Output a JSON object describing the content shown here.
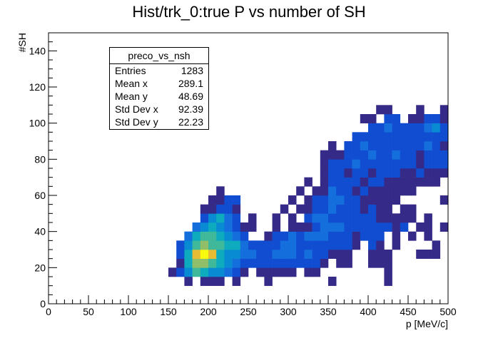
{
  "chart_data": {
    "type": "heatmap",
    "title": "Hist/trk_0:true P vs number of SH",
    "xlabel": "p [MeV/c]",
    "ylabel": "#SH",
    "xlim": [
      0,
      500
    ],
    "ylim": [
      0,
      150
    ],
    "x_ticks": [
      "0",
      "50",
      "100",
      "150",
      "200",
      "250",
      "300",
      "350",
      "400",
      "450",
      "500"
    ],
    "y_ticks": [
      "0",
      "20",
      "40",
      "60",
      "80",
      "100",
      "120",
      "140"
    ],
    "bin_width_x": 10,
    "bin_width_y": 5,
    "colors": {
      "low": "#2a3fb0",
      "mid": "#1aa6c8",
      "high": "#f7e51a"
    },
    "bins": [
      [
        170,
        10,
        1
      ],
      [
        190,
        10,
        1
      ],
      [
        200,
        10,
        1
      ],
      [
        210,
        10,
        1
      ],
      [
        230,
        10,
        1
      ],
      [
        270,
        10,
        1
      ],
      [
        350,
        10,
        1
      ],
      [
        420,
        10,
        1
      ],
      [
        150,
        15,
        1
      ],
      [
        160,
        15,
        2
      ],
      [
        170,
        15,
        4
      ],
      [
        180,
        15,
        6
      ],
      [
        190,
        15,
        5
      ],
      [
        200,
        15,
        4
      ],
      [
        210,
        15,
        4
      ],
      [
        220,
        15,
        3
      ],
      [
        230,
        15,
        2
      ],
      [
        240,
        15,
        1
      ],
      [
        260,
        15,
        1
      ],
      [
        270,
        15,
        1
      ],
      [
        280,
        15,
        1
      ],
      [
        290,
        15,
        1
      ],
      [
        300,
        15,
        1
      ],
      [
        320,
        15,
        1
      ],
      [
        330,
        15,
        1
      ],
      [
        420,
        15,
        1
      ],
      [
        160,
        20,
        1
      ],
      [
        170,
        20,
        5
      ],
      [
        180,
        20,
        7
      ],
      [
        190,
        20,
        7
      ],
      [
        200,
        20,
        6
      ],
      [
        210,
        20,
        5
      ],
      [
        220,
        20,
        4
      ],
      [
        230,
        20,
        3
      ],
      [
        240,
        20,
        2
      ],
      [
        250,
        20,
        2
      ],
      [
        260,
        20,
        2
      ],
      [
        270,
        20,
        2
      ],
      [
        280,
        20,
        2
      ],
      [
        290,
        20,
        2
      ],
      [
        300,
        20,
        2
      ],
      [
        310,
        20,
        2
      ],
      [
        320,
        20,
        2
      ],
      [
        330,
        20,
        2
      ],
      [
        340,
        20,
        1
      ],
      [
        360,
        20,
        1
      ],
      [
        370,
        20,
        1
      ],
      [
        400,
        20,
        1
      ],
      [
        410,
        20,
        1
      ],
      [
        420,
        20,
        1
      ],
      [
        160,
        25,
        2
      ],
      [
        170,
        25,
        5
      ],
      [
        180,
        25,
        8
      ],
      [
        190,
        25,
        9
      ],
      [
        200,
        25,
        8
      ],
      [
        210,
        25,
        5
      ],
      [
        220,
        25,
        4
      ],
      [
        230,
        25,
        4
      ],
      [
        240,
        25,
        3
      ],
      [
        250,
        25,
        3
      ],
      [
        260,
        25,
        2
      ],
      [
        270,
        25,
        2
      ],
      [
        280,
        25,
        3
      ],
      [
        290,
        25,
        3
      ],
      [
        300,
        25,
        3
      ],
      [
        310,
        25,
        2
      ],
      [
        320,
        25,
        3
      ],
      [
        330,
        25,
        2
      ],
      [
        340,
        25,
        2
      ],
      [
        350,
        25,
        1
      ],
      [
        360,
        25,
        1
      ],
      [
        370,
        25,
        1
      ],
      [
        400,
        25,
        1
      ],
      [
        410,
        25,
        1
      ],
      [
        420,
        25,
        1
      ],
      [
        460,
        25,
        1
      ],
      [
        470,
        25,
        1
      ],
      [
        480,
        25,
        1
      ],
      [
        160,
        30,
        2
      ],
      [
        170,
        30,
        4
      ],
      [
        180,
        30,
        6
      ],
      [
        190,
        30,
        7
      ],
      [
        200,
        30,
        6
      ],
      [
        210,
        30,
        6
      ],
      [
        220,
        30,
        5
      ],
      [
        230,
        30,
        5
      ],
      [
        240,
        30,
        3
      ],
      [
        250,
        30,
        2
      ],
      [
        260,
        30,
        2
      ],
      [
        270,
        30,
        2
      ],
      [
        280,
        30,
        2
      ],
      [
        290,
        30,
        3
      ],
      [
        300,
        30,
        3
      ],
      [
        310,
        30,
        2
      ],
      [
        320,
        30,
        2
      ],
      [
        330,
        30,
        2
      ],
      [
        340,
        30,
        2
      ],
      [
        350,
        30,
        2
      ],
      [
        360,
        30,
        2
      ],
      [
        370,
        30,
        2
      ],
      [
        380,
        30,
        1
      ],
      [
        400,
        30,
        2
      ],
      [
        410,
        30,
        1
      ],
      [
        430,
        30,
        1
      ],
      [
        480,
        30,
        1
      ],
      [
        170,
        35,
        3
      ],
      [
        180,
        35,
        5
      ],
      [
        190,
        35,
        6
      ],
      [
        200,
        35,
        6
      ],
      [
        210,
        35,
        5
      ],
      [
        220,
        35,
        4
      ],
      [
        230,
        35,
        3
      ],
      [
        240,
        35,
        2
      ],
      [
        270,
        35,
        1
      ],
      [
        280,
        35,
        2
      ],
      [
        290,
        35,
        2
      ],
      [
        300,
        35,
        3
      ],
      [
        310,
        35,
        2
      ],
      [
        320,
        35,
        3
      ],
      [
        330,
        35,
        3
      ],
      [
        340,
        35,
        3
      ],
      [
        350,
        35,
        2
      ],
      [
        360,
        35,
        2
      ],
      [
        370,
        35,
        2
      ],
      [
        380,
        35,
        1
      ],
      [
        390,
        35,
        2
      ],
      [
        400,
        35,
        2
      ],
      [
        410,
        35,
        2
      ],
      [
        430,
        35,
        1
      ],
      [
        450,
        35,
        1
      ],
      [
        470,
        35,
        1
      ],
      [
        180,
        40,
        3
      ],
      [
        190,
        40,
        4
      ],
      [
        200,
        40,
        5
      ],
      [
        210,
        40,
        4
      ],
      [
        220,
        40,
        3
      ],
      [
        230,
        40,
        2
      ],
      [
        240,
        40,
        1
      ],
      [
        250,
        40,
        1
      ],
      [
        280,
        40,
        1
      ],
      [
        300,
        40,
        1
      ],
      [
        310,
        40,
        1
      ],
      [
        320,
        40,
        1
      ],
      [
        330,
        40,
        2
      ],
      [
        340,
        40,
        3
      ],
      [
        350,
        40,
        3
      ],
      [
        360,
        40,
        3
      ],
      [
        370,
        40,
        2
      ],
      [
        380,
        40,
        2
      ],
      [
        390,
        40,
        2
      ],
      [
        400,
        40,
        2
      ],
      [
        410,
        40,
        2
      ],
      [
        420,
        40,
        2
      ],
      [
        430,
        40,
        1
      ],
      [
        440,
        40,
        2
      ],
      [
        460,
        40,
        1
      ],
      [
        470,
        40,
        1
      ],
      [
        490,
        40,
        1
      ],
      [
        190,
        45,
        2
      ],
      [
        200,
        45,
        4
      ],
      [
        210,
        45,
        5
      ],
      [
        220,
        45,
        3
      ],
      [
        230,
        45,
        2
      ],
      [
        250,
        45,
        1
      ],
      [
        280,
        45,
        1
      ],
      [
        300,
        45,
        1
      ],
      [
        320,
        45,
        2
      ],
      [
        330,
        45,
        3
      ],
      [
        340,
        45,
        3
      ],
      [
        350,
        45,
        2
      ],
      [
        360,
        45,
        2
      ],
      [
        370,
        45,
        2
      ],
      [
        380,
        45,
        2
      ],
      [
        390,
        45,
        2
      ],
      [
        400,
        45,
        2
      ],
      [
        410,
        45,
        1
      ],
      [
        420,
        45,
        1
      ],
      [
        430,
        45,
        1
      ],
      [
        440,
        45,
        1
      ],
      [
        450,
        45,
        1
      ],
      [
        470,
        45,
        1
      ],
      [
        190,
        50,
        1
      ],
      [
        200,
        50,
        1
      ],
      [
        210,
        50,
        2
      ],
      [
        220,
        50,
        2
      ],
      [
        230,
        50,
        1
      ],
      [
        290,
        50,
        1
      ],
      [
        310,
        50,
        1
      ],
      [
        320,
        50,
        1
      ],
      [
        330,
        50,
        2
      ],
      [
        340,
        50,
        2
      ],
      [
        350,
        50,
        3
      ],
      [
        360,
        50,
        2
      ],
      [
        370,
        50,
        2
      ],
      [
        380,
        50,
        2
      ],
      [
        390,
        50,
        1
      ],
      [
        400,
        50,
        2
      ],
      [
        410,
        50,
        1
      ],
      [
        420,
        50,
        1
      ],
      [
        440,
        50,
        1
      ],
      [
        450,
        50,
        1
      ],
      [
        200,
        55,
        1
      ],
      [
        210,
        55,
        1
      ],
      [
        220,
        55,
        2
      ],
      [
        230,
        55,
        2
      ],
      [
        300,
        55,
        1
      ],
      [
        320,
        55,
        1
      ],
      [
        330,
        55,
        2
      ],
      [
        340,
        55,
        2
      ],
      [
        350,
        55,
        3
      ],
      [
        360,
        55,
        3
      ],
      [
        370,
        55,
        2
      ],
      [
        380,
        55,
        2
      ],
      [
        390,
        55,
        1
      ],
      [
        400,
        55,
        1
      ],
      [
        410,
        55,
        1
      ],
      [
        420,
        55,
        1
      ],
      [
        430,
        55,
        1
      ],
      [
        490,
        55,
        1
      ],
      [
        210,
        60,
        1
      ],
      [
        310,
        60,
        1
      ],
      [
        330,
        60,
        1
      ],
      [
        340,
        60,
        1
      ],
      [
        350,
        60,
        3
      ],
      [
        360,
        60,
        2
      ],
      [
        370,
        60,
        2
      ],
      [
        380,
        60,
        1
      ],
      [
        390,
        60,
        2
      ],
      [
        400,
        60,
        1
      ],
      [
        410,
        60,
        1
      ],
      [
        420,
        60,
        1
      ],
      [
        430,
        60,
        1
      ],
      [
        440,
        60,
        1
      ],
      [
        450,
        60,
        1
      ],
      [
        320,
        65,
        1
      ],
      [
        340,
        65,
        1
      ],
      [
        350,
        65,
        2
      ],
      [
        360,
        65,
        2
      ],
      [
        370,
        65,
        2
      ],
      [
        380,
        65,
        2
      ],
      [
        390,
        65,
        1
      ],
      [
        400,
        65,
        2
      ],
      [
        410,
        65,
        2
      ],
      [
        420,
        65,
        1
      ],
      [
        430,
        65,
        1
      ],
      [
        440,
        65,
        1
      ],
      [
        450,
        65,
        1
      ],
      [
        460,
        65,
        1
      ],
      [
        470,
        65,
        1
      ],
      [
        480,
        65,
        1
      ],
      [
        340,
        70,
        1
      ],
      [
        350,
        70,
        2
      ],
      [
        360,
        70,
        2
      ],
      [
        370,
        70,
        1
      ],
      [
        380,
        70,
        2
      ],
      [
        390,
        70,
        2
      ],
      [
        400,
        70,
        1
      ],
      [
        410,
        70,
        2
      ],
      [
        420,
        70,
        2
      ],
      [
        430,
        70,
        2
      ],
      [
        440,
        70,
        1
      ],
      [
        450,
        70,
        1
      ],
      [
        460,
        70,
        2
      ],
      [
        470,
        70,
        1
      ],
      [
        480,
        70,
        1
      ],
      [
        490,
        70,
        1
      ],
      [
        340,
        75,
        1
      ],
      [
        350,
        75,
        2
      ],
      [
        360,
        75,
        2
      ],
      [
        370,
        75,
        2
      ],
      [
        380,
        75,
        3
      ],
      [
        390,
        75,
        2
      ],
      [
        400,
        75,
        2
      ],
      [
        410,
        75,
        2
      ],
      [
        420,
        75,
        2
      ],
      [
        430,
        75,
        2
      ],
      [
        440,
        75,
        2
      ],
      [
        450,
        75,
        2
      ],
      [
        460,
        75,
        1
      ],
      [
        470,
        75,
        2
      ],
      [
        480,
        75,
        2
      ],
      [
        490,
        75,
        2
      ],
      [
        340,
        80,
        1
      ],
      [
        350,
        80,
        1
      ],
      [
        360,
        80,
        1
      ],
      [
        370,
        80,
        2
      ],
      [
        380,
        80,
        2
      ],
      [
        390,
        80,
        2
      ],
      [
        400,
        80,
        3
      ],
      [
        410,
        80,
        2
      ],
      [
        420,
        80,
        2
      ],
      [
        430,
        80,
        3
      ],
      [
        440,
        80,
        2
      ],
      [
        450,
        80,
        2
      ],
      [
        460,
        80,
        1
      ],
      [
        470,
        80,
        2
      ],
      [
        480,
        80,
        2
      ],
      [
        490,
        80,
        2
      ],
      [
        350,
        85,
        1
      ],
      [
        370,
        85,
        2
      ],
      [
        380,
        85,
        2
      ],
      [
        390,
        85,
        3
      ],
      [
        400,
        85,
        2
      ],
      [
        410,
        85,
        2
      ],
      [
        420,
        85,
        2
      ],
      [
        430,
        85,
        2
      ],
      [
        440,
        85,
        2
      ],
      [
        450,
        85,
        2
      ],
      [
        460,
        85,
        2
      ],
      [
        470,
        85,
        3
      ],
      [
        480,
        85,
        2
      ],
      [
        490,
        85,
        1
      ],
      [
        380,
        90,
        2
      ],
      [
        390,
        90,
        2
      ],
      [
        400,
        90,
        2
      ],
      [
        410,
        90,
        2
      ],
      [
        420,
        90,
        2
      ],
      [
        430,
        90,
        2
      ],
      [
        440,
        90,
        2
      ],
      [
        450,
        90,
        2
      ],
      [
        460,
        90,
        2
      ],
      [
        470,
        90,
        2
      ],
      [
        480,
        90,
        2
      ],
      [
        490,
        90,
        2
      ],
      [
        400,
        95,
        2
      ],
      [
        410,
        95,
        2
      ],
      [
        420,
        95,
        3
      ],
      [
        430,
        95,
        2
      ],
      [
        440,
        95,
        2
      ],
      [
        450,
        95,
        2
      ],
      [
        460,
        95,
        2
      ],
      [
        470,
        95,
        3
      ],
      [
        480,
        95,
        4
      ],
      [
        490,
        95,
        2
      ],
      [
        390,
        100,
        1
      ],
      [
        400,
        100,
        1
      ],
      [
        420,
        100,
        2
      ],
      [
        430,
        100,
        2
      ],
      [
        450,
        100,
        1
      ],
      [
        460,
        100,
        1
      ],
      [
        470,
        100,
        2
      ],
      [
        480,
        100,
        2
      ],
      [
        490,
        100,
        1
      ],
      [
        410,
        105,
        1
      ],
      [
        420,
        105,
        1
      ],
      [
        460,
        105,
        1
      ],
      [
        490,
        105,
        1
      ]
    ],
    "stats": {
      "name": "preco_vs_nsh",
      "rows": [
        {
          "label": "Entries",
          "value": "1283"
        },
        {
          "label": "Mean x",
          "value": "289.1"
        },
        {
          "label": "Mean y",
          "value": "48.69"
        },
        {
          "label": "Std Dev x",
          "value": "92.39"
        },
        {
          "label": "Std Dev y",
          "value": "22.23"
        }
      ]
    }
  }
}
